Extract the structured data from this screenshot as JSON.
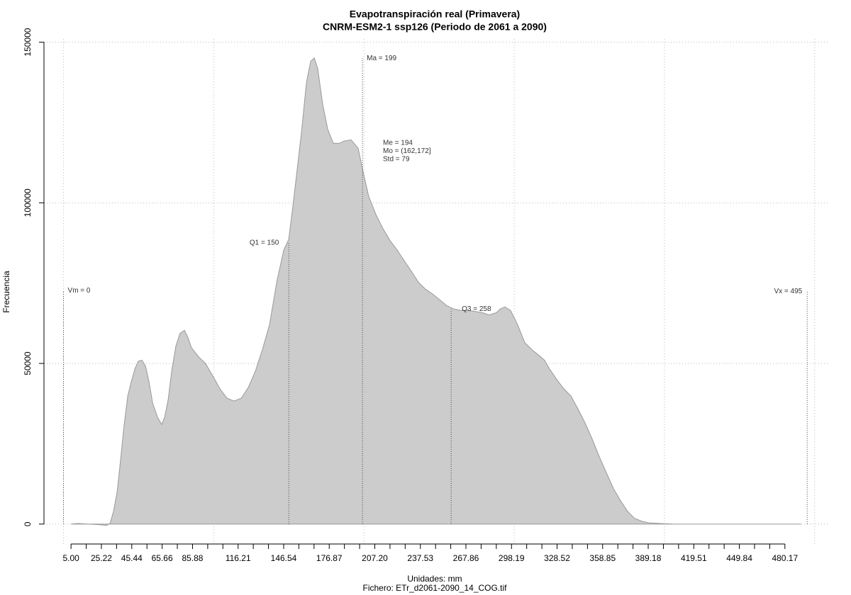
{
  "chart_data": {
    "type": "area",
    "title": "Evapotranspiración real (Primavera)",
    "subtitle": "CNRM-ESM2-1 ssp126 (Periodo de 2061 a 2090)",
    "x_label": "Unidades: mm",
    "caption": "Fichero: ETr_d2061-2090_14_COG.tif",
    "y_label": "Frecuencia",
    "color": "#cccccc",
    "line_color": "#999999",
    "grid": true,
    "x": [
      5.0,
      9.7,
      16.8,
      23.9,
      28.6,
      31.0,
      33.3,
      35.7,
      38.0,
      40.4,
      42.8,
      45.1,
      47.5,
      49.8,
      52.2,
      54.6,
      56.9,
      59.3,
      62.6,
      65.4,
      67.3,
      69.7,
      72.0,
      74.8,
      77.6,
      80.5,
      82.8,
      85.2,
      89.9,
      94.6,
      99.4,
      104.1,
      108.8,
      113.5,
      118.3,
      123.0,
      127.7,
      132.4,
      137.1,
      141.9,
      146.6,
      149.9,
      152.3,
      155.1,
      158.4,
      161.7,
      164.5,
      166.9,
      169.2,
      172.5,
      175.8,
      179.6,
      183.4,
      186.7,
      191.4,
      196.1,
      199.4,
      203.2,
      207.9,
      212.6,
      217.4,
      222.1,
      226.8,
      231.5,
      236.2,
      241.0,
      245.7,
      250.4,
      255.1,
      259.9,
      264.6,
      269.3,
      274.0,
      278.7,
      283.4,
      288.2,
      290.5,
      293.8,
      297.6,
      302.3,
      307.0,
      311.7,
      316.5,
      320.2,
      323.5,
      328.3,
      333.0,
      337.7,
      342.4,
      347.1,
      351.8,
      356.6,
      361.3,
      366.0,
      370.7,
      375.4,
      380.1,
      384.9,
      389.6,
      396.7,
      406.1,
      429.7,
      491.0
    ],
    "values": [
      0,
      200,
      0,
      -200,
      -400,
      200,
      4000,
      10000,
      19900,
      31000,
      39900,
      44300,
      48300,
      50700,
      51000,
      49200,
      44300,
      37700,
      33200,
      31000,
      33200,
      38800,
      47600,
      55400,
      59400,
      60300,
      58100,
      54900,
      52100,
      49900,
      46100,
      42100,
      39200,
      38300,
      39200,
      42500,
      47600,
      54300,
      62000,
      75300,
      85300,
      88600,
      97500,
      108600,
      121900,
      137400,
      144000,
      145100,
      141800,
      130700,
      123000,
      118500,
      118500,
      119200,
      119600,
      117000,
      109700,
      101900,
      96400,
      92000,
      88200,
      85300,
      82000,
      78700,
      75300,
      73100,
      71600,
      69800,
      68000,
      66900,
      66500,
      66500,
      66200,
      65800,
      65100,
      65800,
      66900,
      67600,
      66500,
      62000,
      56500,
      54300,
      52500,
      51000,
      48300,
      45000,
      42100,
      39900,
      35900,
      31500,
      26600,
      21000,
      16000,
      11100,
      7300,
      4000,
      1800,
      900,
      400,
      200,
      0,
      0,
      0
    ],
    "xlim": [
      -13,
      510
    ],
    "ylim": [
      -6200,
      151000
    ],
    "xticks": [
      {
        "value": 5.0,
        "label": "5.00"
      },
      {
        "value": 25.22,
        "label": "25.22"
      },
      {
        "value": 45.44,
        "label": "45.44"
      },
      {
        "value": 65.66,
        "label": "65.66"
      },
      {
        "value": 85.88,
        "label": "85.88"
      },
      {
        "value": 116.21,
        "label": "116.21"
      },
      {
        "value": 146.54,
        "label": "146.54"
      },
      {
        "value": 176.87,
        "label": "176.87"
      },
      {
        "value": 207.2,
        "label": "207.20"
      },
      {
        "value": 237.53,
        "label": "237.53"
      },
      {
        "value": 267.86,
        "label": "267.86"
      },
      {
        "value": 298.19,
        "label": "298.19"
      },
      {
        "value": 328.52,
        "label": "328.52"
      },
      {
        "value": 358.85,
        "label": "358.85"
      },
      {
        "value": 389.18,
        "label": "389.18"
      },
      {
        "value": 419.51,
        "label": "419.51"
      },
      {
        "value": 449.84,
        "label": "449.84"
      },
      {
        "value": 480.17,
        "label": "480.17"
      }
    ],
    "xminorticks": [
      15.11,
      35.33,
      55.55,
      75.77,
      95.99,
      106.1,
      126.32,
      136.43,
      156.65,
      166.76,
      186.98,
      197.09,
      217.31,
      227.42,
      247.64,
      257.75,
      277.97,
      288.08,
      308.3,
      318.41,
      338.63,
      348.74,
      368.96,
      379.07,
      399.29,
      409.4,
      429.62,
      439.73,
      459.95,
      470.06
    ],
    "xgrid": [
      0,
      100,
      200,
      300,
      400,
      500
    ],
    "yticks": [
      0,
      50000,
      100000,
      150000
    ],
    "annotations": [
      {
        "label": "Vm = 0",
        "x": 0,
        "y": 72700
      },
      {
        "label": "Q1 = 150",
        "x": 150,
        "y": 87500
      },
      {
        "label": "Ma = 199",
        "x": 199,
        "y": 145000
      },
      {
        "label": "Q3 = 258",
        "x": 258,
        "y": 66900
      },
      {
        "label": "Vx = 495",
        "x": 495,
        "y": 72400
      }
    ],
    "stats_labels": [
      "Me = 194",
      "Mo = (162,172]",
      "Std = 79"
    ]
  }
}
